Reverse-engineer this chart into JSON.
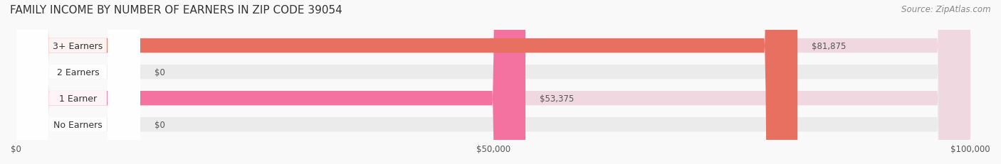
{
  "title": "FAMILY INCOME BY NUMBER OF EARNERS IN ZIP CODE 39054",
  "source": "Source: ZipAtlas.com",
  "categories": [
    "No Earners",
    "1 Earner",
    "2 Earners",
    "3+ Earners"
  ],
  "values": [
    0,
    53375,
    0,
    81875
  ],
  "bar_colors": [
    "#9b9fd4",
    "#f472a0",
    "#f5c98a",
    "#e87060"
  ],
  "label_colors": [
    "#9b9fd4",
    "#f472a0",
    "#f5c98a",
    "#e87060"
  ],
  "bg_colors": [
    "#ebebeb",
    "#f0d8e0",
    "#ebebeb",
    "#f0d8e0"
  ],
  "xlim": [
    0,
    100000
  ],
  "xticks": [
    0,
    50000,
    100000
  ],
  "xtick_labels": [
    "$0",
    "$50,000",
    "$100,000"
  ],
  "bar_height": 0.55,
  "figsize": [
    14.06,
    2.32
  ],
  "dpi": 100,
  "title_fontsize": 11,
  "source_fontsize": 8.5,
  "label_fontsize": 9,
  "value_fontsize": 8.5,
  "tick_fontsize": 8.5
}
